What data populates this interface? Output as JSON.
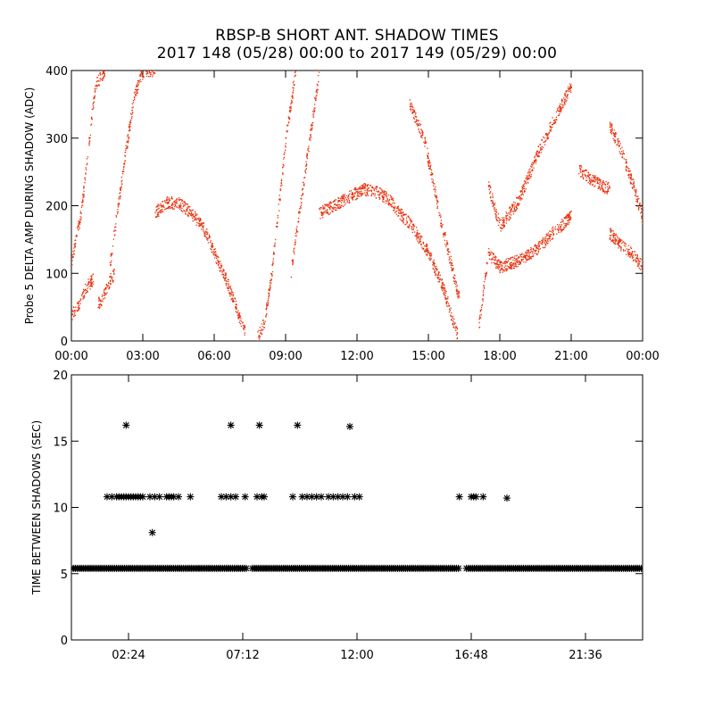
{
  "title": {
    "line1": "RBSP-B SHORT ANT. SHADOW TIMES",
    "line2": "2017 148 (05/28) 00:00 to 2017 149 (05/29) 00:00"
  },
  "colors": {
    "upper_points": "#e8300c",
    "lower_points": "#000000"
  },
  "chart_data": [
    {
      "type": "scatter",
      "x_unit": "hours since 2017-05-28 00:00",
      "xlim": [
        0,
        24
      ],
      "ylim": [
        0,
        400
      ],
      "xticks": [
        0,
        3,
        6,
        9,
        12,
        15,
        18,
        21,
        24
      ],
      "xtick_labels": [
        "00:00",
        "03:00",
        "06:00",
        "09:00",
        "12:00",
        "15:00",
        "18:00",
        "21:00",
        "00:00"
      ],
      "yticks": [
        0,
        100,
        200,
        300,
        400
      ],
      "ytick_labels": [
        "0",
        "100",
        "200",
        "300",
        "400"
      ],
      "xlabel": "",
      "ylabel": "Probe 5 DELTA AMP DURING SHADOW (ADC)",
      "marker": "dot",
      "color": "#e8300c",
      "series_segments": [
        {
          "x": [
            0.0,
            0.3,
            0.6,
            0.9
          ],
          "y": [
            40,
            55,
            80,
            92
          ]
        },
        {
          "x": [
            1.1,
            1.3,
            1.6,
            1.8
          ],
          "y": [
            55,
            65,
            90,
            100
          ]
        },
        {
          "x": [
            0.0,
            0.4,
            0.7,
            1.0,
            1.4
          ],
          "y": [
            120,
            190,
            290,
            380,
            400
          ]
        },
        {
          "x": [
            1.6,
            2.1,
            2.6,
            3.0,
            3.5
          ],
          "y": [
            110,
            240,
            360,
            400,
            400
          ]
        },
        {
          "x": [
            3.5,
            4.0,
            4.5,
            5.0,
            5.5
          ],
          "y": [
            190,
            205,
            205,
            190,
            170
          ]
        },
        {
          "x": [
            5.5,
            6.0,
            6.5,
            7.0,
            7.3
          ],
          "y": [
            170,
            130,
            90,
            40,
            10
          ]
        },
        {
          "x": [
            7.8,
            8.1,
            8.4,
            8.7,
            9.0,
            9.4
          ],
          "y": [
            5,
            30,
            100,
            200,
            300,
            400
          ]
        },
        {
          "x": [
            9.2,
            9.6,
            10.0,
            10.4
          ],
          "y": [
            100,
            200,
            300,
            400
          ]
        },
        {
          "x": [
            10.4,
            11.0,
            11.7,
            12.3,
            12.9,
            13.5
          ],
          "y": [
            190,
            200,
            215,
            225,
            220,
            205
          ]
        },
        {
          "x": [
            13.5,
            14.3,
            15.0,
            15.6,
            16.2
          ],
          "y": [
            200,
            170,
            130,
            80,
            10
          ]
        },
        {
          "x": [
            14.2,
            14.8,
            15.5,
            16.3
          ],
          "y": [
            350,
            300,
            180,
            60
          ]
        },
        {
          "x": [
            17.1,
            17.5,
            18.0,
            18.8,
            19.5,
            20.2,
            21.0
          ],
          "y": [
            20,
            130,
            110,
            120,
            135,
            160,
            185
          ]
        },
        {
          "x": [
            17.5,
            18.0,
            18.8,
            19.6,
            20.3,
            21.0
          ],
          "y": [
            230,
            170,
            210,
            280,
            330,
            380
          ]
        },
        {
          "x": [
            21.3,
            21.8,
            22.3,
            22.6
          ],
          "y": [
            255,
            240,
            230,
            225
          ]
        },
        {
          "x": [
            22.6,
            23.0,
            23.5,
            24.0
          ],
          "y": [
            160,
            145,
            130,
            110
          ]
        },
        {
          "x": [
            22.6,
            23.1,
            23.6,
            24.0
          ],
          "y": [
            320,
            280,
            230,
            180
          ]
        }
      ]
    },
    {
      "type": "scatter",
      "x_unit": "hours since 2017-05-28 00:00",
      "xlim": [
        0,
        24
      ],
      "ylim": [
        0,
        20
      ],
      "xticks": [
        2.4,
        7.2,
        12.0,
        16.8,
        21.6
      ],
      "xtick_labels": [
        "02:24",
        "07:12",
        "12:00",
        "16:48",
        "21:36"
      ],
      "yticks": [
        0,
        5,
        10,
        15,
        20
      ],
      "ytick_labels": [
        "0",
        "5",
        "10",
        "15",
        "20"
      ],
      "xlabel": "",
      "ylabel": "TIME BETWEEN SHADOWS (SEC)",
      "marker": "asterisk",
      "color": "#000000",
      "baseline": {
        "y": 5.4,
        "x_ranges": [
          [
            0,
            7.4
          ],
          [
            7.6,
            16.3
          ],
          [
            16.6,
            24
          ]
        ]
      },
      "points": [
        {
          "x": 2.3,
          "y": 16.2
        },
        {
          "x": 6.7,
          "y": 16.2
        },
        {
          "x": 7.9,
          "y": 16.2
        },
        {
          "x": 9.5,
          "y": 16.2
        },
        {
          "x": 11.7,
          "y": 16.1
        },
        {
          "x": 3.4,
          "y": 8.1
        },
        {
          "x": 1.5,
          "y": 10.8
        },
        {
          "x": 1.7,
          "y": 10.8
        },
        {
          "x": 1.9,
          "y": 10.8
        },
        {
          "x": 2.0,
          "y": 10.8
        },
        {
          "x": 2.1,
          "y": 10.8
        },
        {
          "x": 2.2,
          "y": 10.8
        },
        {
          "x": 2.3,
          "y": 10.8
        },
        {
          "x": 2.4,
          "y": 10.8
        },
        {
          "x": 2.5,
          "y": 10.8
        },
        {
          "x": 2.6,
          "y": 10.8
        },
        {
          "x": 2.7,
          "y": 10.8
        },
        {
          "x": 2.8,
          "y": 10.8
        },
        {
          "x": 2.9,
          "y": 10.8
        },
        {
          "x": 3.0,
          "y": 10.8
        },
        {
          "x": 3.3,
          "y": 10.8
        },
        {
          "x": 3.5,
          "y": 10.8
        },
        {
          "x": 3.7,
          "y": 10.8
        },
        {
          "x": 4.0,
          "y": 10.8
        },
        {
          "x": 4.1,
          "y": 10.8
        },
        {
          "x": 4.2,
          "y": 10.8
        },
        {
          "x": 4.3,
          "y": 10.8
        },
        {
          "x": 4.5,
          "y": 10.8
        },
        {
          "x": 5.0,
          "y": 10.8
        },
        {
          "x": 6.3,
          "y": 10.8
        },
        {
          "x": 6.5,
          "y": 10.8
        },
        {
          "x": 6.7,
          "y": 10.8
        },
        {
          "x": 6.9,
          "y": 10.8
        },
        {
          "x": 7.3,
          "y": 10.8
        },
        {
          "x": 7.8,
          "y": 10.8
        },
        {
          "x": 8.0,
          "y": 10.8
        },
        {
          "x": 8.1,
          "y": 10.8
        },
        {
          "x": 9.3,
          "y": 10.8
        },
        {
          "x": 9.7,
          "y": 10.8
        },
        {
          "x": 9.9,
          "y": 10.8
        },
        {
          "x": 10.1,
          "y": 10.8
        },
        {
          "x": 10.3,
          "y": 10.8
        },
        {
          "x": 10.5,
          "y": 10.8
        },
        {
          "x": 10.8,
          "y": 10.8
        },
        {
          "x": 11.0,
          "y": 10.8
        },
        {
          "x": 11.2,
          "y": 10.8
        },
        {
          "x": 11.4,
          "y": 10.8
        },
        {
          "x": 11.6,
          "y": 10.8
        },
        {
          "x": 11.9,
          "y": 10.8
        },
        {
          "x": 12.1,
          "y": 10.8
        },
        {
          "x": 16.3,
          "y": 10.8
        },
        {
          "x": 16.8,
          "y": 10.8
        },
        {
          "x": 16.9,
          "y": 10.8
        },
        {
          "x": 17.0,
          "y": 10.8
        },
        {
          "x": 17.3,
          "y": 10.8
        },
        {
          "x": 18.3,
          "y": 10.7
        }
      ]
    }
  ]
}
